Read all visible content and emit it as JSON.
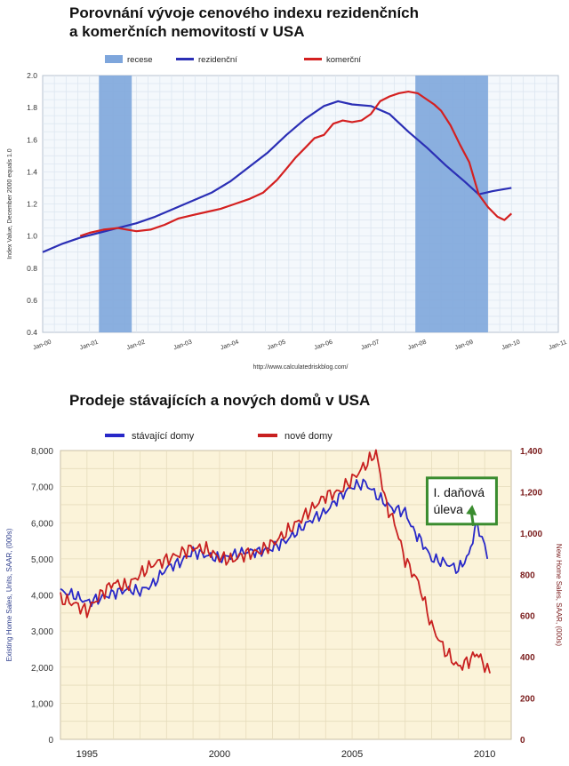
{
  "chart_data": [
    {
      "type": "line",
      "title_lines": [
        "Porovnání vývoje cenového indexu rezidenčních",
        "a komerčních nemovitostí v USA"
      ],
      "ylabel": "Index Value, December 2000 equals 1.0",
      "source": "http://www.calculatedriskblog.com/",
      "ylim": [
        0.4,
        2.0
      ],
      "xlim": [
        2000.0,
        2011.0
      ],
      "y_ticks": [
        0.4,
        0.6,
        0.8,
        1.0,
        1.2,
        1.4,
        1.6,
        1.8,
        2.0
      ],
      "y_tick_labels": [
        "0.4",
        "0.6",
        "0.8",
        "1.0",
        "1.2",
        "1.4",
        "1.6",
        "1.8",
        "2.0"
      ],
      "x_ticks": [
        2000,
        2001,
        2002,
        2003,
        2004,
        2005,
        2006,
        2007,
        2008,
        2009,
        2010,
        2011
      ],
      "x_tick_labels": [
        "Jan-00",
        "Jan-01",
        "Jan-02",
        "Jan-03",
        "Jan-04",
        "Jan-05",
        "Jan-06",
        "Jan-07",
        "Jan-08",
        "Jan-09",
        "Jan-10",
        "Jan-11"
      ],
      "grid": true,
      "legend_position": "top",
      "legend": [
        {
          "label": "recese",
          "color": "#7ea6dc",
          "kind": "patch"
        },
        {
          "label": "rezidenční",
          "color": "#2b2fb5",
          "kind": "line"
        },
        {
          "label": "komerční",
          "color": "#d42020",
          "kind": "line"
        }
      ],
      "recessions": [
        [
          2001.2,
          2001.9
        ],
        [
          2007.95,
          2009.5
        ]
      ],
      "series": [
        {
          "name": "rezidenční",
          "color": "#2b2fb5",
          "x": [
            2000.0,
            2000.4,
            2000.8,
            2001.2,
            2001.6,
            2002.0,
            2002.4,
            2002.8,
            2003.2,
            2003.6,
            2004.0,
            2004.4,
            2004.8,
            2005.2,
            2005.6,
            2006.0,
            2006.3,
            2006.6,
            2007.0,
            2007.4,
            2007.8,
            2008.2,
            2008.6,
            2009.0,
            2009.3,
            2009.6,
            2010.0
          ],
          "y": [
            0.9,
            0.95,
            0.99,
            1.02,
            1.05,
            1.08,
            1.12,
            1.17,
            1.22,
            1.27,
            1.34,
            1.43,
            1.52,
            1.63,
            1.73,
            1.81,
            1.84,
            1.82,
            1.81,
            1.76,
            1.65,
            1.55,
            1.44,
            1.34,
            1.26,
            1.28,
            1.3
          ]
        },
        {
          "name": "komerční",
          "color": "#d42020",
          "x": [
            2000.8,
            2001.0,
            2001.3,
            2001.6,
            2001.8,
            2002.0,
            2002.3,
            2002.6,
            2002.9,
            2003.2,
            2003.5,
            2003.8,
            2004.1,
            2004.4,
            2004.7,
            2005.0,
            2005.2,
            2005.4,
            2005.6,
            2005.8,
            2006.0,
            2006.2,
            2006.4,
            2006.6,
            2006.8,
            2007.0,
            2007.2,
            2007.4,
            2007.6,
            2007.8,
            2008.0,
            2008.2,
            2008.35,
            2008.5,
            2008.7,
            2008.9,
            2009.1,
            2009.3,
            2009.5,
            2009.7,
            2009.85,
            2010.0
          ],
          "y": [
            1.0,
            1.02,
            1.04,
            1.05,
            1.04,
            1.03,
            1.04,
            1.07,
            1.11,
            1.13,
            1.15,
            1.17,
            1.2,
            1.23,
            1.27,
            1.35,
            1.42,
            1.49,
            1.55,
            1.61,
            1.63,
            1.7,
            1.72,
            1.71,
            1.72,
            1.76,
            1.84,
            1.87,
            1.89,
            1.9,
            1.89,
            1.85,
            1.82,
            1.78,
            1.69,
            1.57,
            1.46,
            1.26,
            1.18,
            1.12,
            1.1,
            1.14
          ]
        }
      ]
    },
    {
      "type": "line",
      "title": "Prodeje stávajících a nových domů v USA",
      "ylabel_left": "Existing Home Sales, Units, SAAR, (000s)",
      "ylabel_right": "New Home Sales, SAAR, (000s)",
      "ylim_left": [
        0,
        8000
      ],
      "ylim_right": [
        0,
        1400
      ],
      "xlim": [
        1994.0,
        2011.0
      ],
      "y_ticks_left": [
        0,
        1000,
        2000,
        3000,
        4000,
        5000,
        6000,
        7000,
        8000
      ],
      "y_tick_labels_left": [
        "0",
        "1,000",
        "2,000",
        "3,000",
        "4,000",
        "5,000",
        "6,000",
        "7,000",
        "8,000"
      ],
      "y_ticks_right": [
        0,
        200,
        400,
        600,
        800,
        1000,
        1200,
        1400
      ],
      "y_tick_labels_right": [
        "0",
        "200",
        "400",
        "600",
        "800",
        "1,000",
        "1,200",
        "1,400"
      ],
      "x_ticks": [
        1995,
        2000,
        2005,
        2010
      ],
      "x_tick_labels": [
        "1995",
        "2000",
        "2005",
        "2010"
      ],
      "grid": true,
      "legend_position": "top-left",
      "legend": [
        {
          "label": "stávající domy",
          "color": "#2828c8"
        },
        {
          "label": "nové domy",
          "color": "#c82020"
        }
      ],
      "annotation": {
        "text_lines": [
          "I. daňová",
          "úleva"
        ],
        "x": 2008.5,
        "y": 6700,
        "arrow_to_x": 2009.7,
        "arrow_to_y": 6200
      },
      "series": [
        {
          "name": "stávající domy",
          "axis": "left",
          "color": "#2828c8",
          "x": [
            1994.0,
            1994.5,
            1995.0,
            1995.5,
            1996.0,
            1996.5,
            1997.0,
            1997.5,
            1998.0,
            1998.5,
            1999.0,
            1999.5,
            2000.0,
            2000.5,
            2001.0,
            2001.5,
            2002.0,
            2002.5,
            2003.0,
            2003.5,
            2004.0,
            2004.5,
            2005.0,
            2005.5,
            2006.0,
            2006.5,
            2007.0,
            2007.3,
            2007.6,
            2008.0,
            2008.5,
            2009.0,
            2009.4,
            2009.7,
            2009.9,
            2010.1
          ],
          "y": [
            4100,
            4000,
            3800,
            3900,
            4050,
            4150,
            4100,
            4300,
            4750,
            4900,
            5200,
            5100,
            5000,
            5100,
            5200,
            5200,
            5300,
            5500,
            5800,
            6100,
            6300,
            6700,
            7000,
            7100,
            6700,
            6400,
            6300,
            5800,
            5500,
            5000,
            4900,
            4700,
            5100,
            6000,
            5600,
            5000
          ]
        },
        {
          "name": "nové domy",
          "axis": "right",
          "color": "#c82020",
          "x": [
            1994.0,
            1994.5,
            1995.0,
            1995.5,
            1996.0,
            1996.5,
            1997.0,
            1997.5,
            1998.0,
            1998.5,
            1999.0,
            1999.5,
            2000.0,
            2000.5,
            2001.0,
            2001.5,
            2002.0,
            2002.5,
            2003.0,
            2003.5,
            2004.0,
            2004.5,
            2005.0,
            2005.5,
            2005.9,
            2006.3,
            2006.6,
            2007.0,
            2007.5,
            2008.0,
            2008.5,
            2009.0,
            2009.4,
            2009.7,
            2010.0,
            2010.2
          ],
          "y": [
            680,
            660,
            620,
            700,
            760,
            740,
            800,
            850,
            870,
            900,
            930,
            920,
            880,
            870,
            900,
            910,
            950,
            1000,
            1060,
            1120,
            1180,
            1200,
            1260,
            1330,
            1390,
            1130,
            1050,
            870,
            760,
            550,
            430,
            350,
            380,
            420,
            360,
            320
          ]
        }
      ]
    }
  ]
}
